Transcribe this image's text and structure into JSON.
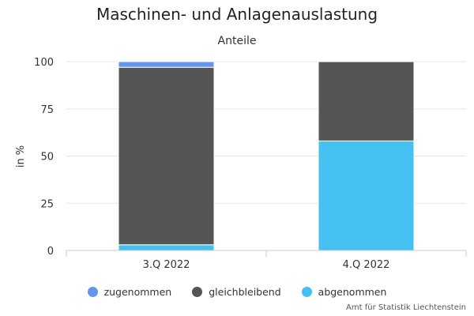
{
  "chart_data": {
    "type": "bar",
    "stacked": true,
    "title": "Maschinen- und Anlagenauslastung",
    "subtitle": "Anteile",
    "ylabel": "in %",
    "xlabel": "",
    "categories": [
      "3.Q 2022",
      "4.Q 2022"
    ],
    "ylim": [
      0,
      100
    ],
    "yticks": [
      0,
      25,
      50,
      75,
      100
    ],
    "grid": true,
    "legend_position": "bottom",
    "series": [
      {
        "name": "abgenommen",
        "color": "#44c1f0",
        "values": [
          3,
          58
        ]
      },
      {
        "name": "gleichbleibend",
        "color": "#555555",
        "values": [
          94,
          42
        ]
      },
      {
        "name": "zugenommen",
        "color": "#6495ed",
        "values": [
          3,
          0
        ]
      }
    ],
    "legend_order": [
      "zugenommen",
      "gleichbleibend",
      "abgenommen"
    ],
    "credits": "Amt für Statistik Liechtenstein"
  }
}
